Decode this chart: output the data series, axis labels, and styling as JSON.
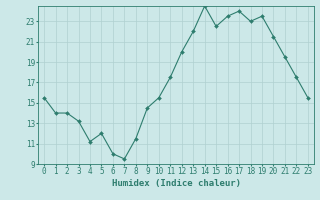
{
  "x": [
    0,
    1,
    2,
    3,
    4,
    5,
    6,
    7,
    8,
    9,
    10,
    11,
    12,
    13,
    14,
    15,
    16,
    17,
    18,
    19,
    20,
    21,
    22,
    23
  ],
  "y": [
    15.5,
    14.0,
    14.0,
    13.2,
    11.2,
    12.0,
    10.0,
    9.5,
    11.5,
    14.5,
    15.5,
    17.5,
    20.0,
    22.0,
    24.5,
    22.5,
    23.5,
    24.0,
    23.0,
    23.5,
    21.5,
    19.5,
    17.5,
    15.5
  ],
  "line_color": "#2e7d6e",
  "marker": "D",
  "marker_size": 2.0,
  "bg_color": "#cce8e8",
  "grid_color": "#b0d0d0",
  "xlabel": "Humidex (Indice chaleur)",
  "ylim": [
    9,
    24.5
  ],
  "xlim": [
    -0.5,
    23.5
  ],
  "yticks": [
    9,
    11,
    13,
    15,
    17,
    19,
    21,
    23
  ],
  "xticks": [
    0,
    1,
    2,
    3,
    4,
    5,
    6,
    7,
    8,
    9,
    10,
    11,
    12,
    13,
    14,
    15,
    16,
    17,
    18,
    19,
    20,
    21,
    22,
    23
  ],
  "tick_color": "#2e7d6e",
  "label_fontsize": 6.5,
  "tick_fontsize": 5.5
}
